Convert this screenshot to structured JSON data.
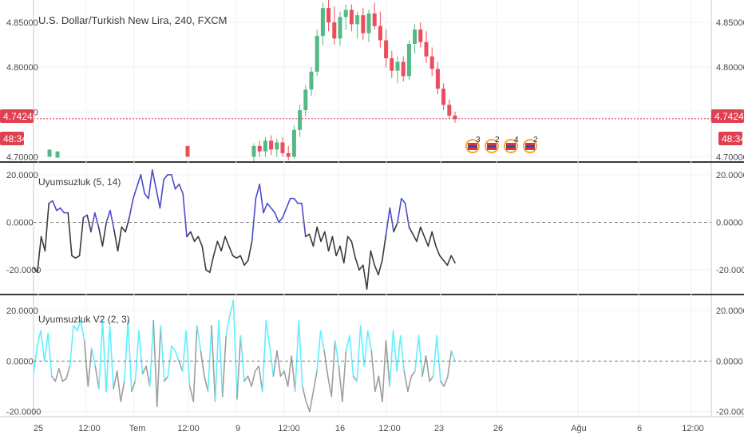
{
  "header": {
    "symbol_title": "U.S. Dollar/Turkish New Lira, 240, FXCM",
    "price_badge": "4.74245",
    "countdown_badge": "48:34",
    "event_counts": [
      "3",
      "2",
      "4",
      "2"
    ]
  },
  "indicator1": {
    "title": "Uyumsuzluk (5, 14)"
  },
  "indicator2": {
    "title": "Uyumsuzluk V2 (2, 3)"
  },
  "colors": {
    "up": "#53b987",
    "down": "#eb4d5c",
    "price_line": "#e0404f",
    "ind1_pos": "#4b4bd0",
    "ind1_neg": "#3b3b3b",
    "ind2_pos": "#5ff0ff",
    "ind2_neg": "#9e9e9e",
    "separator": "#3a3a3a"
  },
  "chart_data": [
    {
      "type": "candlestick",
      "title": "U.S. Dollar/Turkish New Lira, 240, FXCM",
      "y_ticks": [
        "4.85000",
        "4.80000",
        "4.75000",
        "4.70000"
      ],
      "y_range": [
        4.695,
        4.875
      ],
      "last_price": 4.74245,
      "candles": [
        {
          "o": 4.7,
          "h": 4.715,
          "l": 4.695,
          "c": 4.712
        },
        {
          "o": 4.712,
          "h": 4.718,
          "l": 4.7,
          "c": 4.706
        },
        {
          "o": 4.706,
          "h": 4.722,
          "l": 4.7,
          "c": 4.718
        },
        {
          "o": 4.718,
          "h": 4.724,
          "l": 4.702,
          "c": 4.708
        },
        {
          "o": 4.708,
          "h": 4.72,
          "l": 4.7,
          "c": 4.716
        },
        {
          "o": 4.716,
          "h": 4.722,
          "l": 4.7,
          "c": 4.704
        },
        {
          "o": 4.704,
          "h": 4.712,
          "l": 4.696,
          "c": 4.7
        },
        {
          "o": 4.7,
          "h": 4.735,
          "l": 4.698,
          "c": 4.73
        },
        {
          "o": 4.73,
          "h": 4.758,
          "l": 4.722,
          "c": 4.752
        },
        {
          "o": 4.752,
          "h": 4.78,
          "l": 4.745,
          "c": 4.775
        },
        {
          "o": 4.775,
          "h": 4.8,
          "l": 4.768,
          "c": 4.795
        },
        {
          "o": 4.795,
          "h": 4.842,
          "l": 4.79,
          "c": 4.835
        },
        {
          "o": 4.835,
          "h": 4.872,
          "l": 4.825,
          "c": 4.866
        },
        {
          "o": 4.866,
          "h": 4.876,
          "l": 4.84,
          "c": 4.85
        },
        {
          "o": 4.85,
          "h": 4.868,
          "l": 4.825,
          "c": 4.832
        },
        {
          "o": 4.832,
          "h": 4.862,
          "l": 4.824,
          "c": 4.856
        },
        {
          "o": 4.856,
          "h": 4.87,
          "l": 4.842,
          "c": 4.864
        },
        {
          "o": 4.864,
          "h": 4.87,
          "l": 4.84,
          "c": 4.848
        },
        {
          "o": 4.848,
          "h": 4.862,
          "l": 4.832,
          "c": 4.858
        },
        {
          "o": 4.858,
          "h": 4.866,
          "l": 4.83,
          "c": 4.838
        },
        {
          "o": 4.838,
          "h": 4.864,
          "l": 4.828,
          "c": 4.86
        },
        {
          "o": 4.86,
          "h": 4.872,
          "l": 4.842,
          "c": 4.846
        },
        {
          "o": 4.846,
          "h": 4.862,
          "l": 4.822,
          "c": 4.83
        },
        {
          "o": 4.83,
          "h": 4.842,
          "l": 4.8,
          "c": 4.81
        },
        {
          "o": 4.81,
          "h": 4.818,
          "l": 4.788,
          "c": 4.796
        },
        {
          "o": 4.796,
          "h": 4.812,
          "l": 4.782,
          "c": 4.806
        },
        {
          "o": 4.806,
          "h": 4.812,
          "l": 4.784,
          "c": 4.79
        },
        {
          "o": 4.79,
          "h": 4.83,
          "l": 4.786,
          "c": 4.826
        },
        {
          "o": 4.826,
          "h": 4.848,
          "l": 4.815,
          "c": 4.842
        },
        {
          "o": 4.842,
          "h": 4.85,
          "l": 4.822,
          "c": 4.828
        },
        {
          "o": 4.828,
          "h": 4.84,
          "l": 4.805,
          "c": 4.812
        },
        {
          "o": 4.812,
          "h": 4.822,
          "l": 4.79,
          "c": 4.798
        },
        {
          "o": 4.798,
          "h": 4.806,
          "l": 4.77,
          "c": 4.776
        },
        {
          "o": 4.776,
          "h": 4.782,
          "l": 4.752,
          "c": 4.758
        },
        {
          "o": 4.758,
          "h": 4.764,
          "l": 4.742,
          "c": 4.746
        },
        {
          "o": 4.746,
          "h": 4.75,
          "l": 4.738,
          "c": 4.742
        }
      ]
    },
    {
      "type": "line",
      "title": "Uyumsuzluk (5, 14)",
      "y_ticks": [
        "20.0000",
        "0.0000",
        "-20.0000"
      ],
      "y_range": [
        -30,
        25
      ],
      "zero_line": 0,
      "values": [
        -19,
        -21,
        -6,
        -12,
        8,
        9,
        5,
        6,
        4,
        4,
        -14,
        -15,
        -14,
        2,
        3,
        -4,
        4,
        -2,
        -10,
        0,
        5,
        -3,
        -12,
        -2,
        -4,
        2,
        10,
        15,
        20,
        12,
        10,
        22,
        14,
        6,
        18,
        20,
        20,
        14,
        16,
        12,
        -6,
        -4,
        -8,
        -6,
        -10,
        -20,
        -21,
        -14,
        -8,
        -12,
        -6,
        -10,
        -14,
        -15,
        -14,
        -18,
        -16,
        -8,
        10,
        16,
        4,
        8,
        6,
        4,
        0,
        2,
        6,
        10,
        10,
        8,
        8,
        -6,
        -5,
        -10,
        -2,
        -8,
        -4,
        -12,
        -6,
        -14,
        -10,
        -17,
        -6,
        -8,
        -15,
        -20,
        -18,
        -28,
        -12,
        -18,
        -22,
        -16,
        -5,
        6,
        -4,
        0,
        10,
        8,
        -2,
        -5,
        -8,
        -2,
        -6,
        -10,
        -4,
        -10,
        -14,
        -16,
        -18,
        -14,
        -17
      ]
    },
    {
      "type": "line",
      "title": "Uyumsuzluk V2 (2, 3)",
      "y_ticks": [
        "20.0000",
        "0.0000",
        "-20.0000"
      ],
      "y_range": [
        -22,
        26
      ],
      "zero_line": 0,
      "values": [
        -5,
        6,
        12,
        0,
        11,
        -6,
        -8,
        -3,
        -8,
        -7,
        -2,
        14,
        12,
        16,
        8,
        -10,
        5,
        -2,
        -11,
        16,
        -12,
        14,
        -11,
        -4,
        -16,
        -8,
        16,
        -12,
        -8,
        12,
        -5,
        -2,
        -10,
        16,
        -18,
        14,
        -8,
        -6,
        6,
        4,
        0,
        -4,
        12,
        -10,
        -16,
        14,
        4,
        -6,
        -12,
        14,
        -16,
        16,
        -14,
        10,
        18,
        24,
        -15,
        10,
        -8,
        -6,
        -10,
        -4,
        -2,
        -12,
        16,
        6,
        -6,
        4,
        -6,
        -4,
        -10,
        2,
        -12,
        16,
        -10,
        -16,
        -20,
        -12,
        -4,
        12,
        4,
        -6,
        -14,
        8,
        -2,
        -16,
        4,
        10,
        -6,
        -8,
        14,
        -2,
        12,
        4,
        -12,
        -6,
        -16,
        8,
        -10,
        12,
        -4,
        10,
        -4,
        -12,
        -6,
        -4,
        10,
        -6,
        2,
        -8,
        -6,
        10,
        -8,
        -10,
        -6,
        4,
        0
      ]
    }
  ],
  "x_axis": {
    "labels": [
      "25",
      "12:00",
      "Tem",
      "12:00",
      "9",
      "12:00",
      "16",
      "12:00",
      "23",
      "26",
      "Ağu",
      "6",
      "12:00"
    ]
  }
}
